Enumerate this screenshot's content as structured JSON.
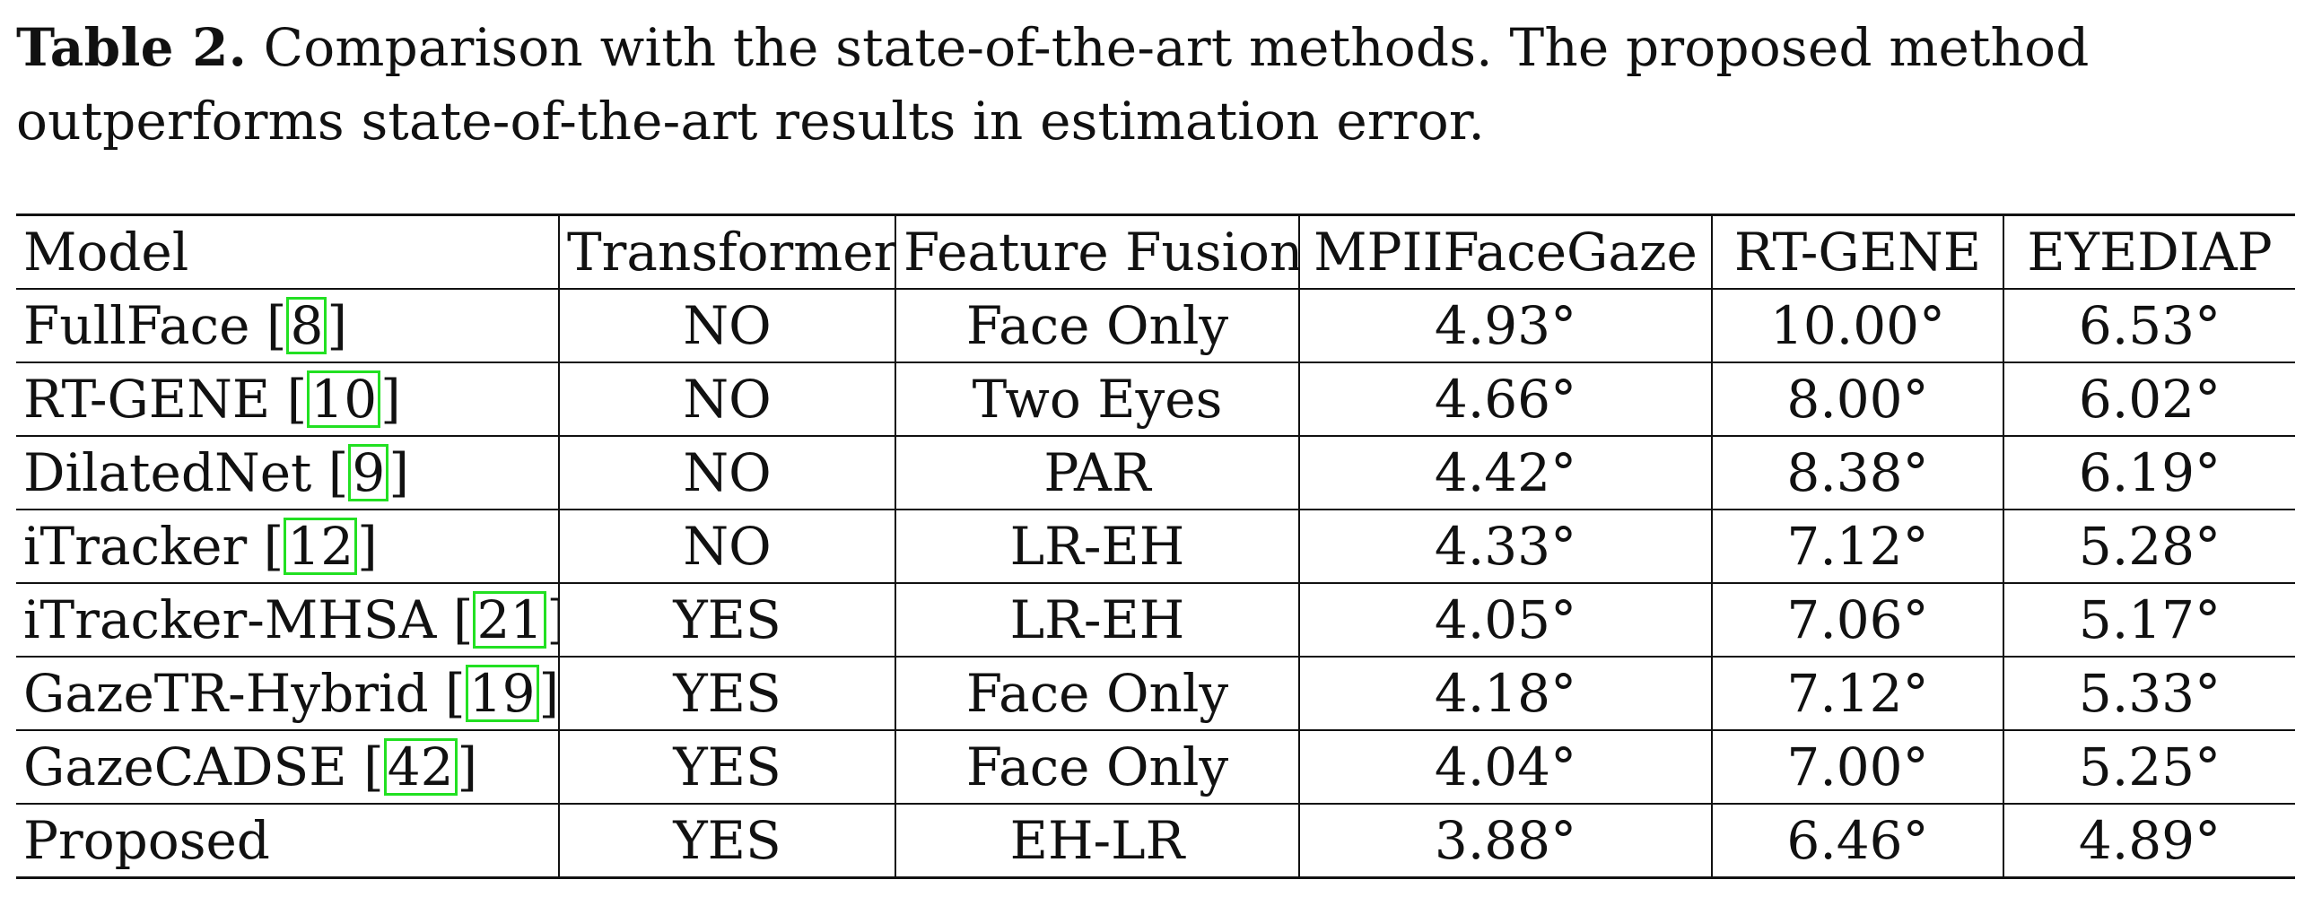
{
  "caption": {
    "label": "Table 2.",
    "text": "Comparison with the state-of-the-art methods. The proposed method outperforms state-of-the-art results in estimation error."
  },
  "table": {
    "headers": [
      "Model",
      "Transformer",
      "Feature Fusion",
      "MPIIFaceGaze",
      "RT-GENE",
      "EYEDIAP"
    ],
    "rows": [
      {
        "model": "FullFace",
        "cite": "8",
        "transformer": "NO",
        "fusion": "Face Only",
        "mpii": "4.93°",
        "rtgene": "10.00°",
        "eyediap": "6.53°"
      },
      {
        "model": "RT-GENE",
        "cite": "10",
        "transformer": "NO",
        "fusion": "Two Eyes",
        "mpii": "4.66°",
        "rtgene": "8.00°",
        "eyediap": "6.02°"
      },
      {
        "model": "DilatedNet",
        "cite": "9",
        "transformer": "NO",
        "fusion": "PAR",
        "mpii": "4.42°",
        "rtgene": "8.38°",
        "eyediap": "6.19°"
      },
      {
        "model": "iTracker",
        "cite": "12",
        "transformer": "NO",
        "fusion": "LR-EH",
        "mpii": "4.33°",
        "rtgene": "7.12°",
        "eyediap": "5.28°"
      },
      {
        "model": "iTracker-MHSA",
        "cite": "21",
        "transformer": "YES",
        "fusion": "LR-EH",
        "mpii": "4.05°",
        "rtgene": "7.06°",
        "eyediap": "5.17°"
      },
      {
        "model": "GazeTR-Hybrid",
        "cite": "19",
        "transformer": "YES",
        "fusion": "Face Only",
        "mpii": "4.18°",
        "rtgene": "7.12°",
        "eyediap": "5.33°"
      },
      {
        "model": "GazeCADSE",
        "cite": "42",
        "transformer": "YES",
        "fusion": "Face Only",
        "mpii": "4.04°",
        "rtgene": "7.00°",
        "eyediap": "5.25°"
      },
      {
        "model": "Proposed",
        "cite": "",
        "transformer": "YES",
        "fusion": "EH-LR",
        "mpii": "3.88°",
        "rtgene": "6.46°",
        "eyediap": "4.89°"
      }
    ]
  }
}
